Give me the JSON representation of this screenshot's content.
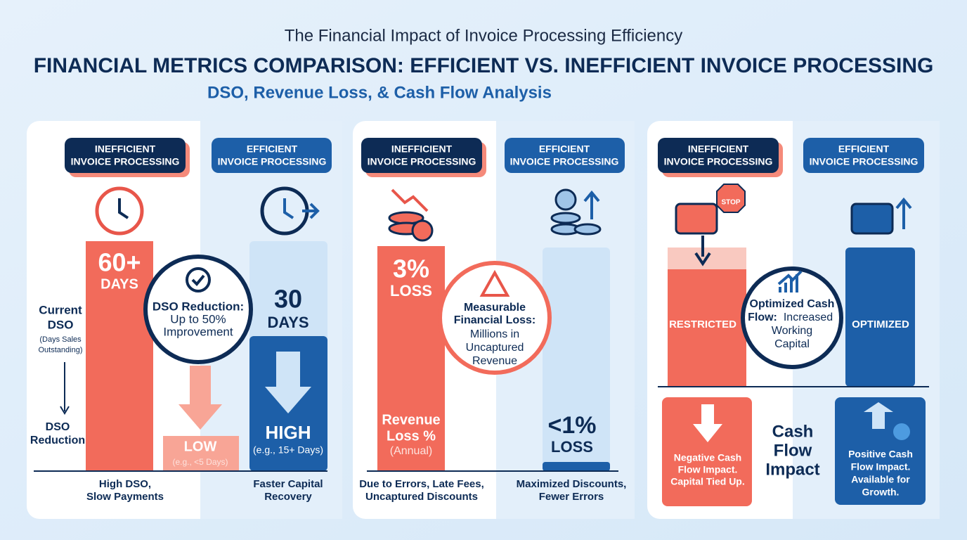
{
  "header": {
    "supertitle": "The Financial Impact of Invoice Processing Efficiency",
    "title": "FINANCIAL METRICS COMPARISON: EFFICIENT VS. INEFFICIENT INVOICE PROCESSING",
    "subtitle": "DSO, Revenue Loss, & Cash Flow Analysis"
  },
  "panels": [
    {
      "left_badge": [
        "INEFFICIENT",
        "INVOICE PROCESSING"
      ],
      "right_badge": [
        "EFFICIENT",
        "INVOICE PROCESSING"
      ],
      "left_bar": [
        "60+",
        "DAYS"
      ],
      "axis_top": [
        "Current",
        "DSO"
      ],
      "axis_note": [
        "(Days Sales",
        "Outstanding)"
      ],
      "axis_bottom": [
        "DSO",
        "Reduction"
      ],
      "circle_title": "DSO Reduction:",
      "circle_text": [
        "Up to 50%",
        "Improvement"
      ],
      "right_value": [
        "30",
        "DAYS"
      ],
      "low": "LOW",
      "low_note": "(e.g., <5 Days)",
      "high": "HIGH",
      "high_note": "(e.g., 15+ Days)",
      "left_caption": [
        "High DSO,",
        "Slow Payments"
      ],
      "right_caption": [
        "Faster Capital",
        "Recovery"
      ]
    },
    {
      "left_badge": [
        "INEFFICIENT",
        "INVOICE PROCESSING"
      ],
      "right_badge": [
        "EFFICIENT",
        "INVOICE PROCESSING"
      ],
      "left_bar": [
        "3%",
        "LOSS"
      ],
      "left_bar_bottom": [
        "Revenue",
        "Loss %"
      ],
      "left_bar_note": "(Annual)",
      "circle_title": [
        "Measurable",
        "Financial Loss:"
      ],
      "circle_text": [
        "Millions in",
        "Uncaptured",
        "Revenue"
      ],
      "right_value": [
        "<1%",
        "LOSS"
      ],
      "left_caption": [
        "Due to Errors, Late Fees,",
        "Uncaptured Discounts"
      ],
      "right_caption": [
        "Maximized Discounts,",
        "Fewer Errors"
      ]
    },
    {
      "left_badge": [
        "INEFFICIENT",
        "INVOICE PROCESSING"
      ],
      "right_badge": [
        "EFFICIENT",
        "INVOICE PROCESSING"
      ],
      "stop": "STOP",
      "left_bar": "RESTRICTED",
      "right_bar": "OPTIMIZED",
      "circle_title": [
        "Optimized Cash",
        "Flow:"
      ],
      "circle_text": [
        "Increased",
        "Working",
        "Capital"
      ],
      "left_box": [
        "Negative Cash",
        "Flow Impact.",
        "Capital Tied Up."
      ],
      "center_label": [
        "Cash",
        "Flow",
        "Impact"
      ],
      "right_box": [
        "Positive Cash",
        "Flow Impact.",
        "Available for",
        "Growth."
      ]
    }
  ]
}
